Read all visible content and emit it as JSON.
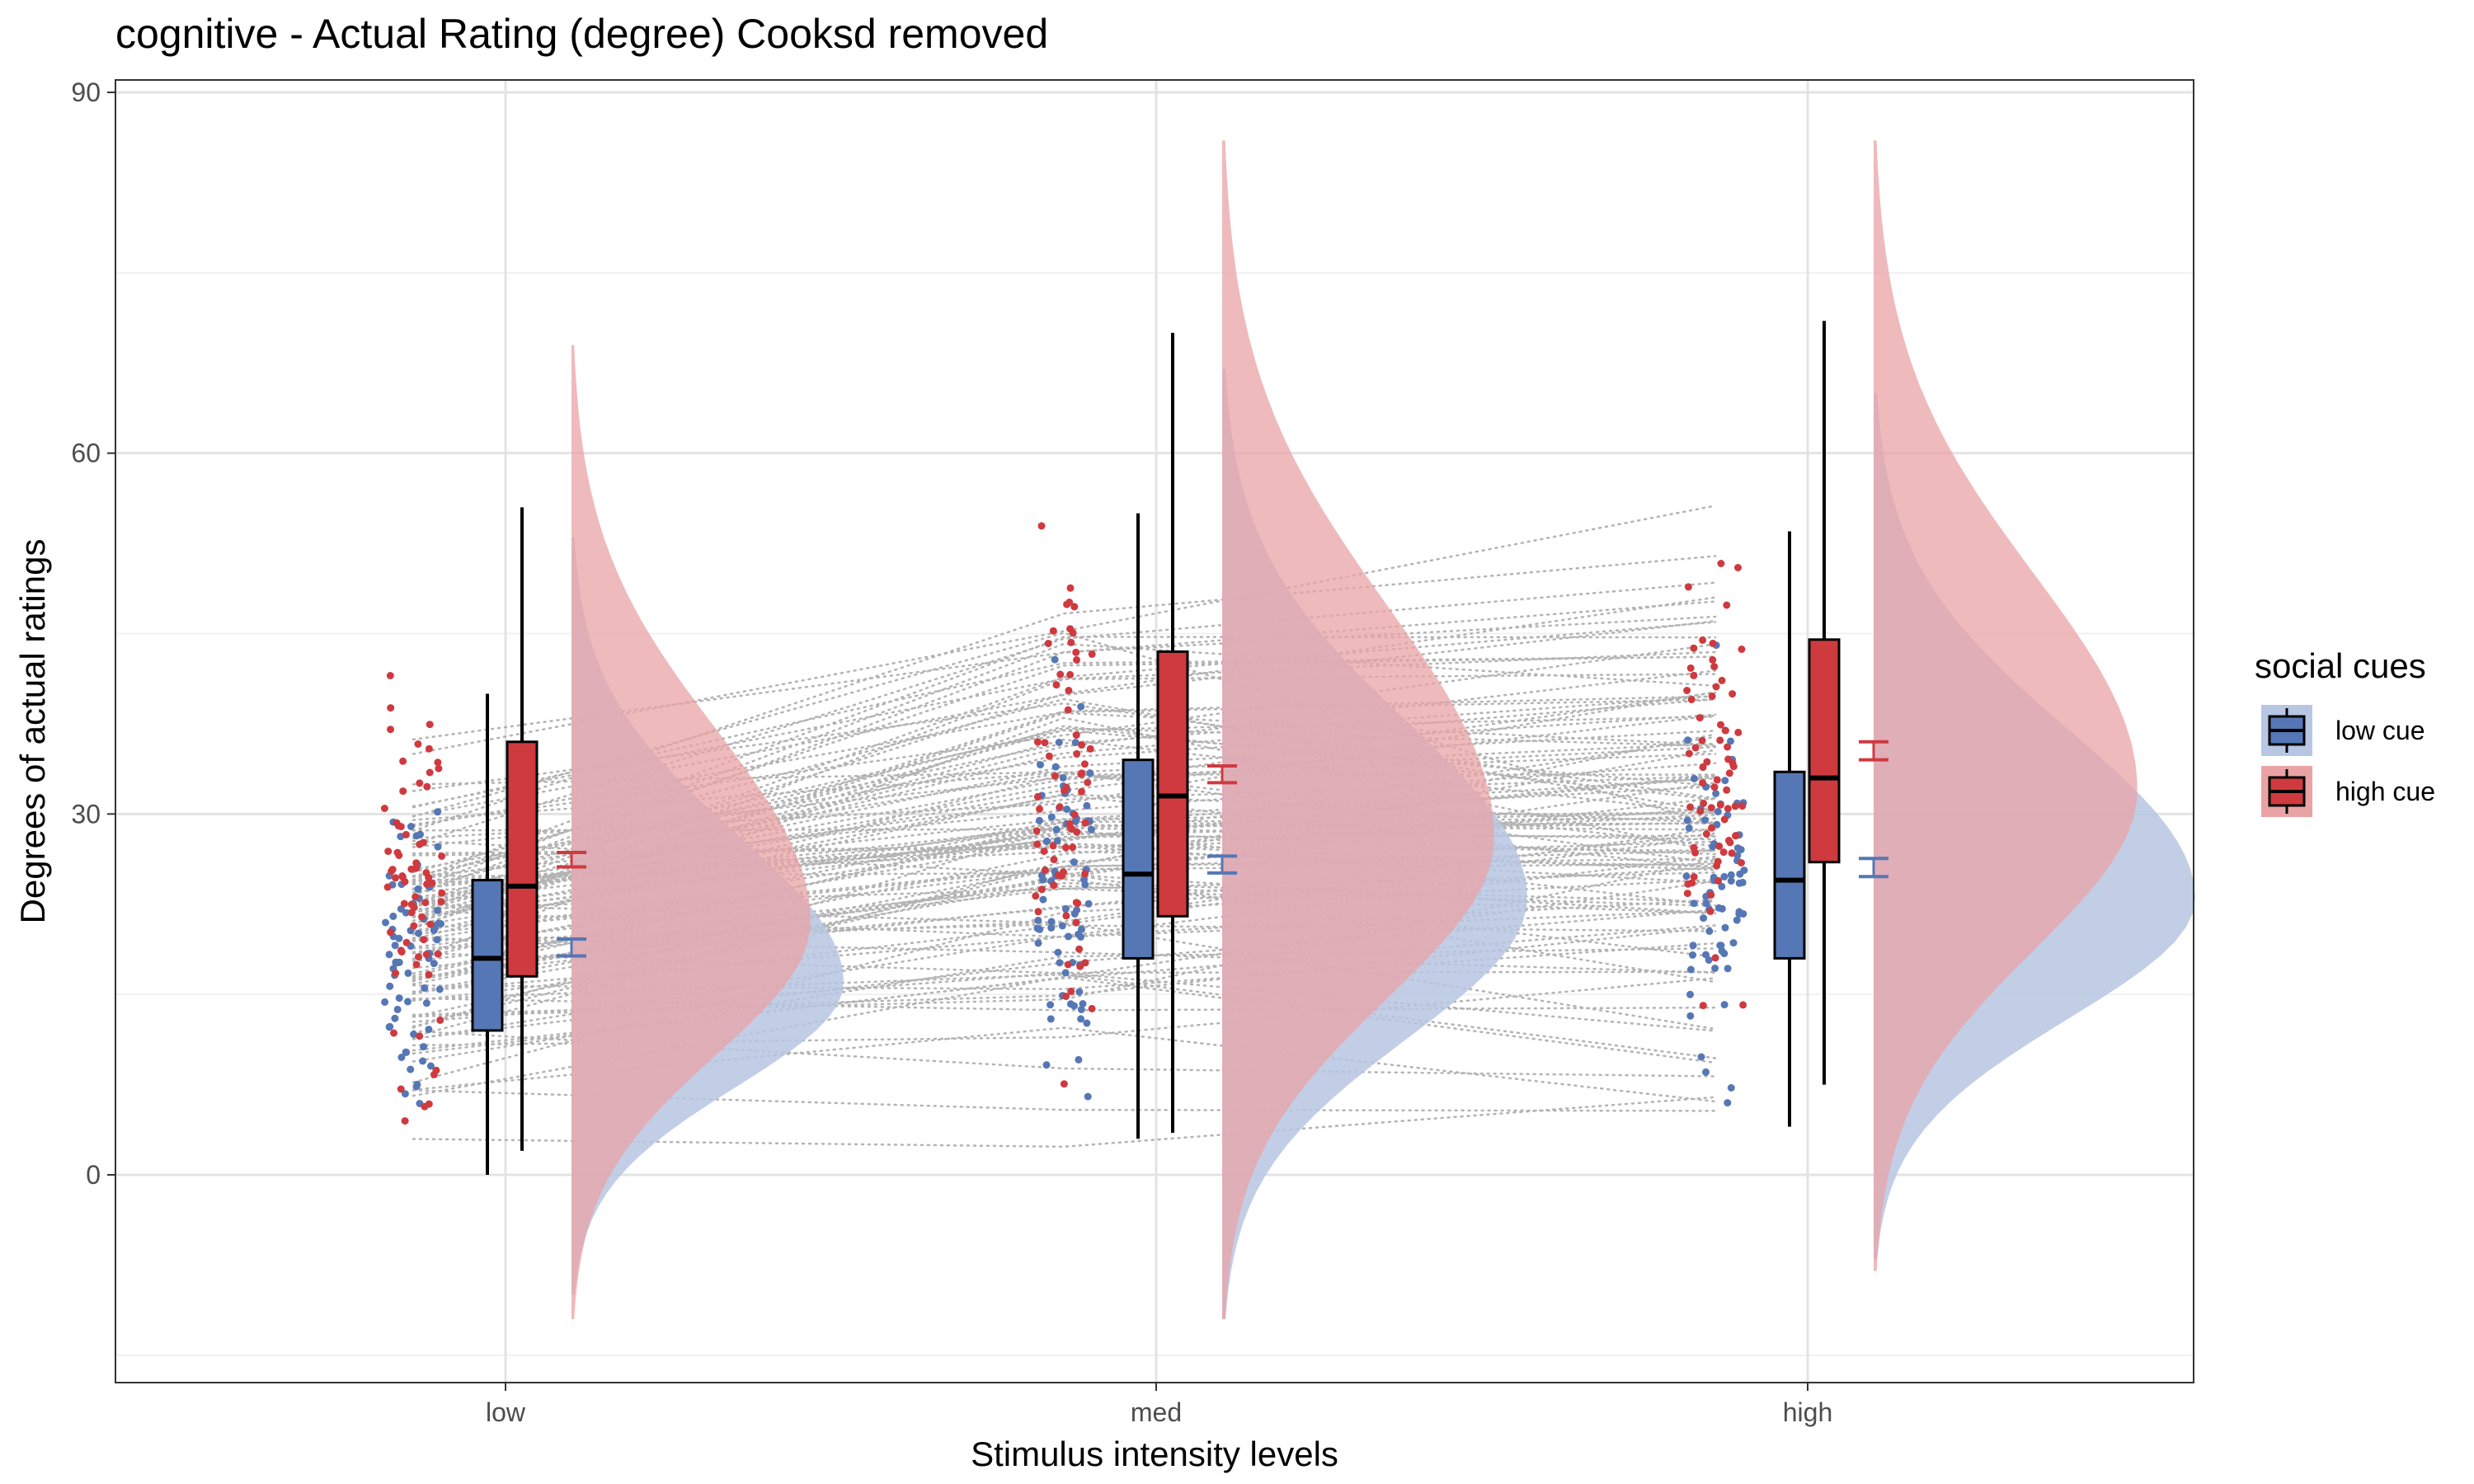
{
  "chart_data": {
    "type": "raincloud",
    "title": "cognitive  - Actual Rating (degree) Cooksd removed",
    "xlabel": "Stimulus intensity levels",
    "ylabel": "Degrees of actual ratings",
    "categories": [
      "low",
      "med",
      "high"
    ],
    "yticks": [
      0,
      30,
      60,
      90
    ],
    "ylim": [
      -17,
      90
    ],
    "grid": true,
    "legend": {
      "title": "social cues",
      "position": "right"
    },
    "series": [
      {
        "name": "low cue",
        "color": "#5677b5",
        "density_color": "#b7c6e2",
        "boxplot": [
          {
            "category": "low",
            "whisker_low": 0,
            "q1": 12,
            "median": 18,
            "q3": 24.5,
            "whisker_high": 40
          },
          {
            "category": "med",
            "whisker_low": 3,
            "q1": 18,
            "median": 25,
            "q3": 34.5,
            "whisker_high": 55
          },
          {
            "category": "high",
            "whisker_low": 4,
            "q1": 18,
            "median": 24.5,
            "q3": 33.5,
            "whisker_high": 53.5
          }
        ],
        "mean_ci": [
          {
            "category": "low",
            "lower": 18.2,
            "upper": 19.6
          },
          {
            "category": "med",
            "lower": 25.1,
            "upper": 26.5
          },
          {
            "category": "high",
            "lower": 24.8,
            "upper": 26.3
          }
        ],
        "density": [
          {
            "category": "low",
            "from": -10,
            "to": 53,
            "peak": 16
          },
          {
            "category": "med",
            "from": -12,
            "to": 67,
            "peak": 23
          },
          {
            "category": "high",
            "from": -7,
            "to": 65,
            "peak": 23
          }
        ]
      },
      {
        "name": "high cue",
        "color": "#cf3a3f",
        "density_color": "#e9a3a5",
        "boxplot": [
          {
            "category": "low",
            "whisker_low": 2,
            "q1": 16.5,
            "median": 24,
            "q3": 36,
            "whisker_high": 55.5
          },
          {
            "category": "med",
            "whisker_low": 3.5,
            "q1": 21.5,
            "median": 31.5,
            "q3": 43.5,
            "whisker_high": 70
          },
          {
            "category": "high",
            "whisker_low": 7.5,
            "q1": 26,
            "median": 33,
            "q3": 44.5,
            "whisker_high": 71
          }
        ],
        "mean_ci": [
          {
            "category": "low",
            "lower": 25.6,
            "upper": 26.8
          },
          {
            "category": "med",
            "lower": 32.6,
            "upper": 34.0
          },
          {
            "category": "high",
            "lower": 34.5,
            "upper": 36.0
          }
        ],
        "density": [
          {
            "category": "low",
            "from": -12,
            "to": 69,
            "peak": 21
          },
          {
            "category": "med",
            "from": -12,
            "to": 86,
            "peak": 28
          },
          {
            "category": "high",
            "from": -8,
            "to": 86,
            "peak": 32
          }
        ]
      }
    ],
    "colors": {
      "panel_border": "#333333",
      "grid_major": "#e3e3e3",
      "grid_minor": "#f1f1f1",
      "connector": "#b3b3b3",
      "text": "#000000",
      "tick_text": "#4d4d4d"
    }
  }
}
